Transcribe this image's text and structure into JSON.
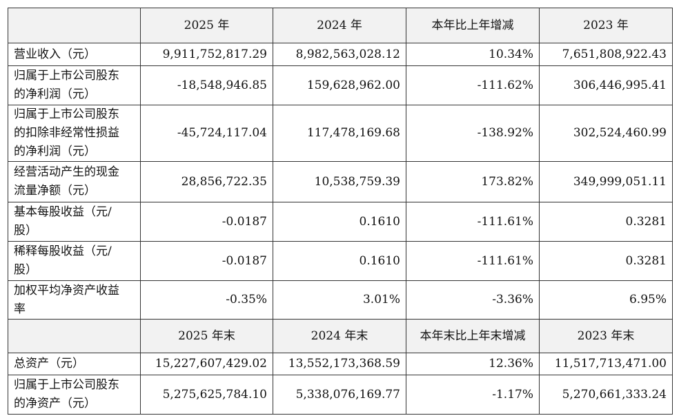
{
  "sections": [
    {
      "header": [
        "2025 年",
        "2024 年",
        "本年比上年增减",
        "2023 年"
      ],
      "rows": [
        {
          "label": "营业收入（元）",
          "values": [
            "9,911,752,817.29",
            "8,982,563,028.12",
            "10.34%",
            "7,651,808,922.43"
          ]
        },
        {
          "label": "归属于上市公司股东的净利润（元）",
          "values": [
            "-18,548,946.85",
            "159,628,962.00",
            "-111.62%",
            "306,446,995.41"
          ]
        },
        {
          "label": "归属于上市公司股东的扣除非经常性损益的净利润（元）",
          "values": [
            "-45,724,117.04",
            "117,478,169.68",
            "-138.92%",
            "302,524,460.99"
          ]
        },
        {
          "label": "经营活动产生的现金流量净额（元）",
          "values": [
            "28,856,722.35",
            "10,538,759.39",
            "173.82%",
            "349,999,051.11"
          ]
        },
        {
          "label": "基本每股收益（元/股）",
          "values": [
            "-0.0187",
            "0.1610",
            "-111.61%",
            "0.3281"
          ]
        },
        {
          "label": "稀释每股收益（元/股）",
          "values": [
            "-0.0187",
            "0.1610",
            "-111.61%",
            "0.3281"
          ]
        },
        {
          "label": "加权平均净资产收益率",
          "values": [
            "-0.35%",
            "3.01%",
            "-3.36%",
            "6.95%"
          ]
        }
      ]
    },
    {
      "header": [
        "2025 年末",
        "2024 年末",
        "本年末比上年末增减",
        "2023 年末"
      ],
      "rows": [
        {
          "label": "总资产（元）",
          "values": [
            "15,227,607,429.02",
            "13,552,173,368.59",
            "12.36%",
            "11,517,713,471.00"
          ]
        },
        {
          "label": "归属于上市公司股东的净资产（元）",
          "values": [
            "5,275,625,784.10",
            "5,338,076,169.77",
            "-1.17%",
            "5,270,661,333.24"
          ]
        }
      ]
    }
  ]
}
